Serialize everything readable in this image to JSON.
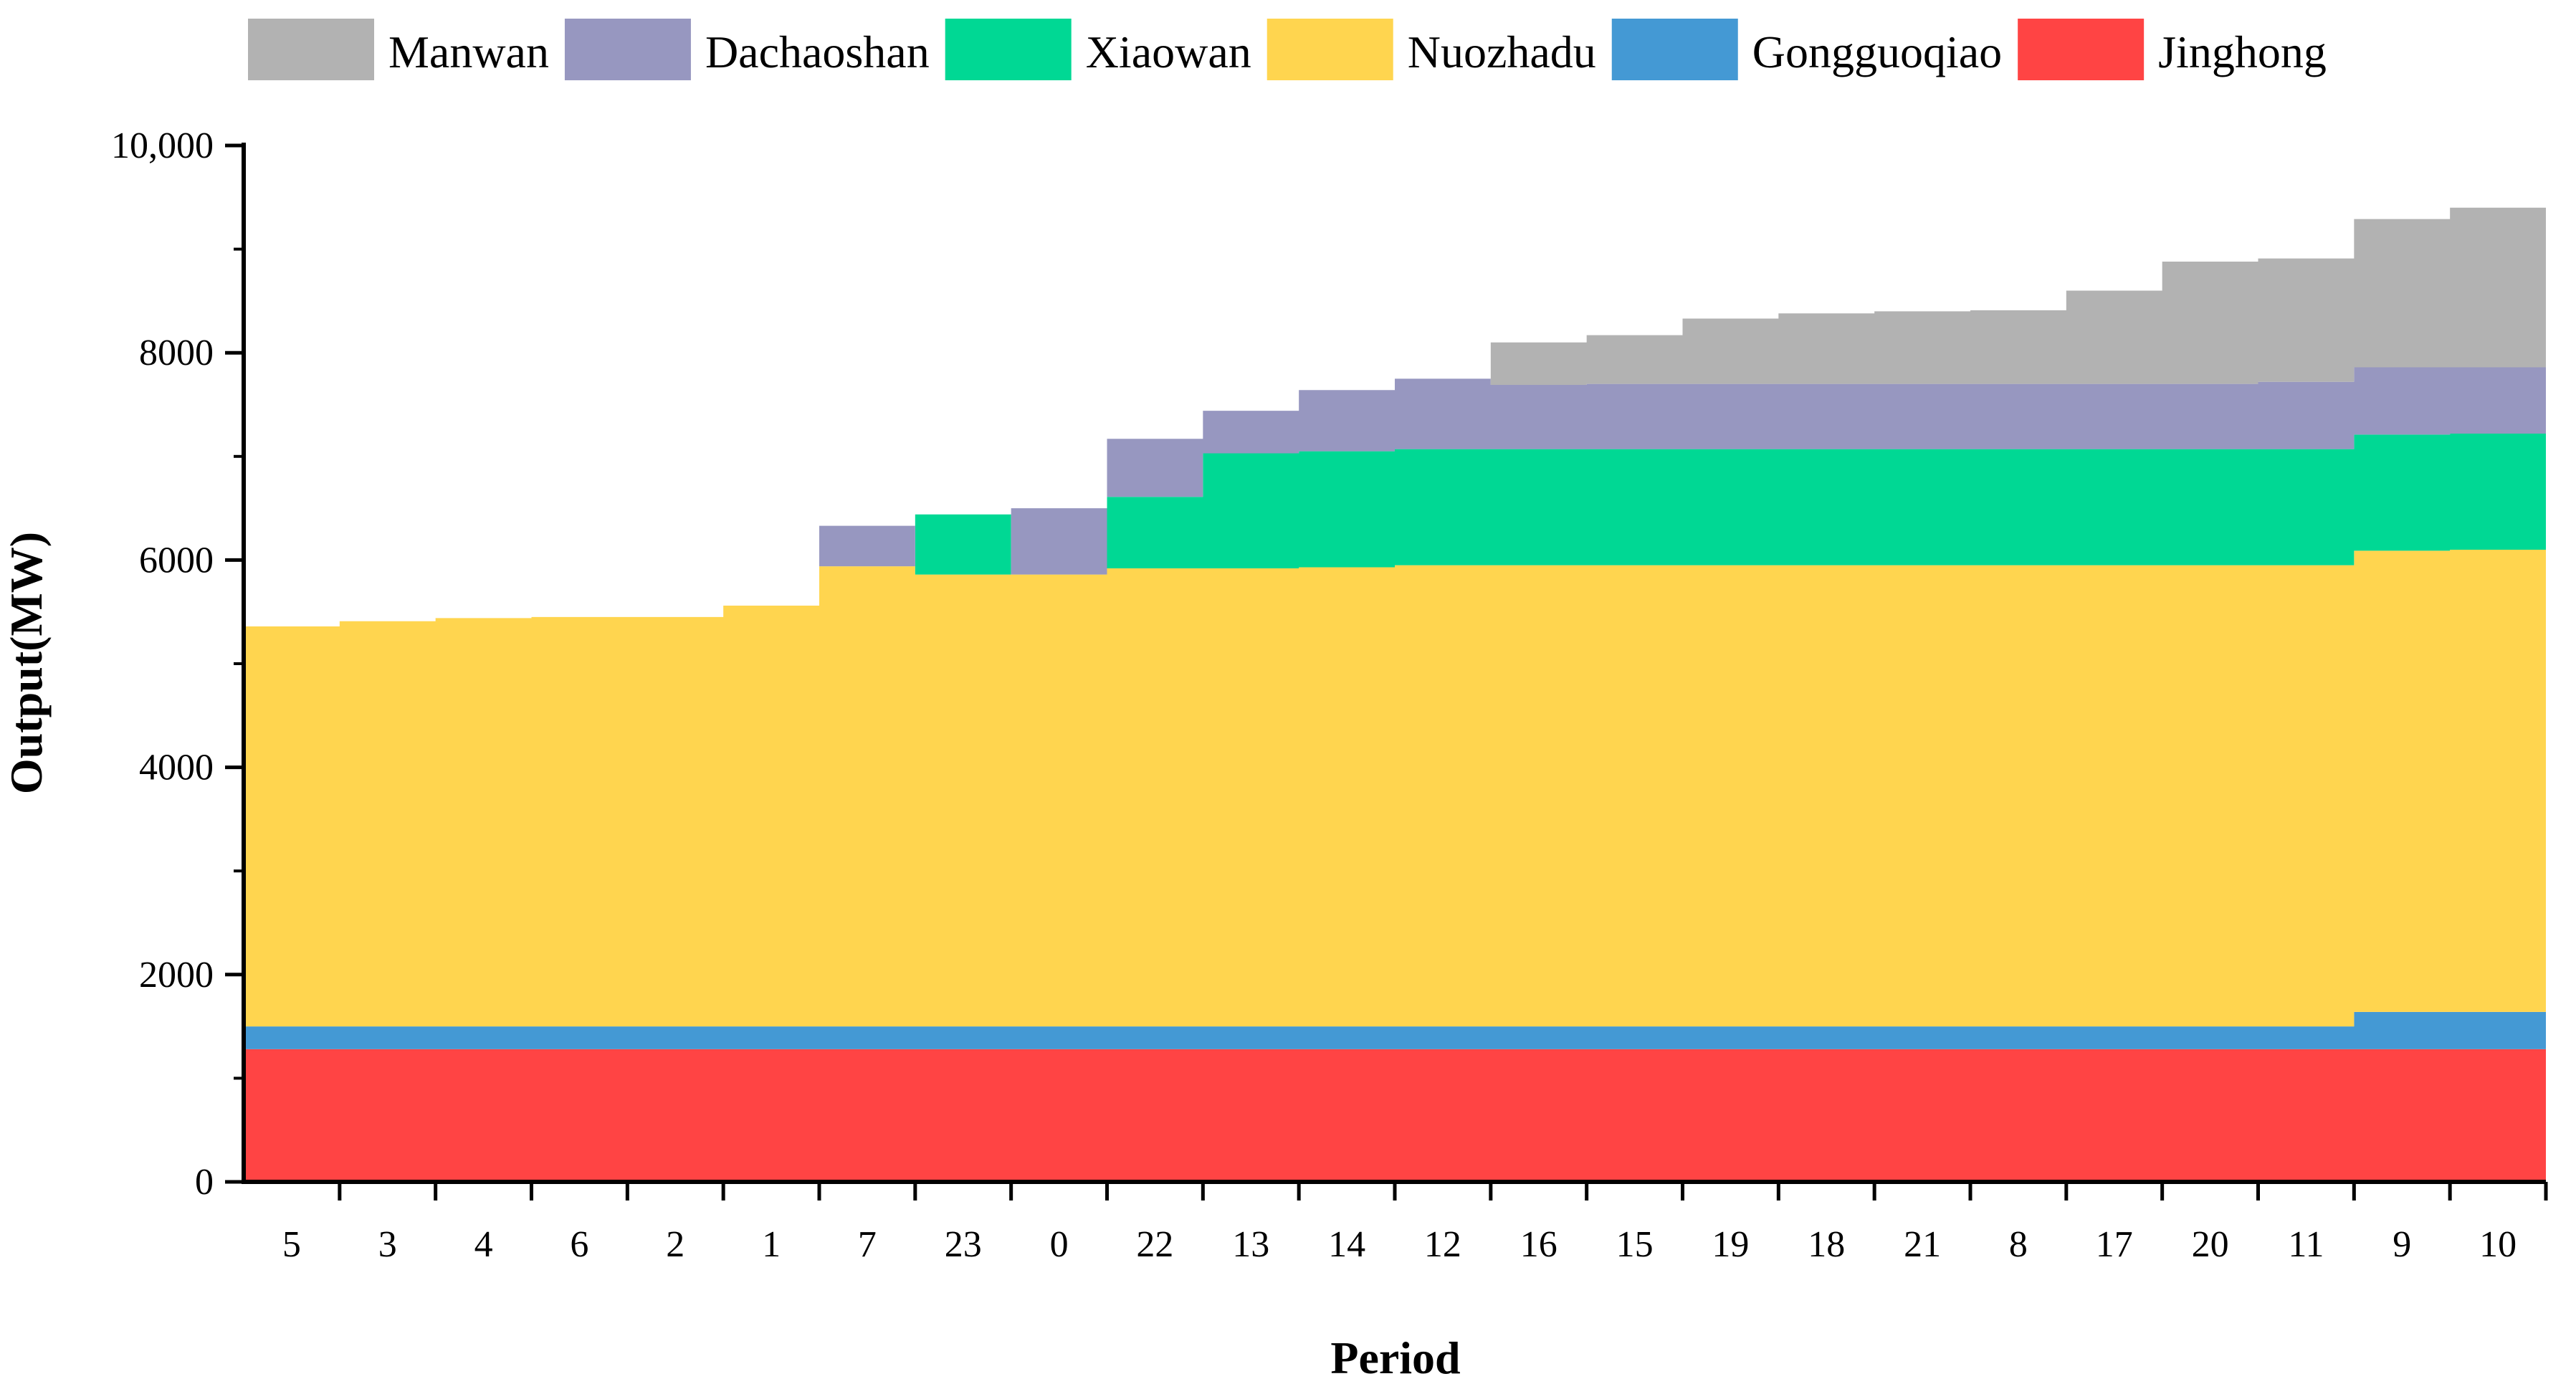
{
  "chart_data": {
    "type": "area",
    "subtype": "stacked-step",
    "xlabel": "Period",
    "ylabel": "Output(MW)",
    "ylim": [
      0,
      10000
    ],
    "yticks": [
      0,
      2000,
      4000,
      6000,
      8000,
      10000
    ],
    "ytick_labels": [
      "0",
      "2000",
      "4000",
      "6000",
      "8000",
      "10,000"
    ],
    "grid": false,
    "legend_position": "top",
    "categories": [
      "5",
      "3",
      "4",
      "6",
      "2",
      "1",
      "7",
      "23",
      "0",
      "22",
      "13",
      "14",
      "12",
      "16",
      "15",
      "19",
      "18",
      "21",
      "8",
      "17",
      "20",
      "11",
      "9",
      "10"
    ],
    "series": [
      {
        "name": "Jinghong",
        "color": "#ff4444",
        "values": [
          1280,
          1280,
          1280,
          1280,
          1280,
          1280,
          1280,
          1280,
          1280,
          1280,
          1280,
          1280,
          1280,
          1280,
          1280,
          1280,
          1280,
          1280,
          1280,
          1280,
          1280,
          1280,
          1280,
          1280
        ]
      },
      {
        "name": "Gongguoqiao",
        "color": "#4499d4",
        "values": [
          220,
          220,
          220,
          220,
          220,
          220,
          220,
          220,
          220,
          220,
          220,
          220,
          220,
          220,
          220,
          220,
          220,
          220,
          220,
          220,
          220,
          220,
          360,
          360
        ]
      },
      {
        "name": "Nuozhadu",
        "color": "#ffd54f",
        "values": [
          3860,
          3910,
          3940,
          3950,
          3950,
          4060,
          4440,
          4360,
          4360,
          4420,
          4420,
          4430,
          4450,
          4450,
          4450,
          4450,
          4450,
          4450,
          4450,
          4450,
          4450,
          4450,
          4450,
          4460
        ]
      },
      {
        "name": "Xiaowan",
        "color": "#00d894",
        "values": [
          0,
          0,
          0,
          0,
          0,
          0,
          0,
          580,
          0,
          690,
          1110,
          1120,
          1120,
          1120,
          1120,
          1120,
          1120,
          1120,
          1120,
          1120,
          1120,
          1120,
          1120,
          1120
        ]
      },
      {
        "name": "Dachaoshan",
        "color": "#9797c0",
        "values": [
          0,
          0,
          0,
          0,
          0,
          0,
          390,
          0,
          640,
          560,
          410,
          590,
          680,
          620,
          630,
          630,
          630,
          630,
          630,
          630,
          630,
          650,
          650,
          640
        ]
      },
      {
        "name": "Manwan",
        "color": "#b2b2b2",
        "values": [
          0,
          0,
          0,
          0,
          0,
          0,
          0,
          0,
          0,
          0,
          0,
          0,
          0,
          410,
          470,
          630,
          680,
          700,
          710,
          900,
          1180,
          1190,
          1430,
          1540
        ]
      }
    ],
    "legend_order": [
      "Manwan",
      "Dachaoshan",
      "Xiaowan",
      "Nuozhadu",
      "Gongguoqiao",
      "Jinghong"
    ]
  }
}
